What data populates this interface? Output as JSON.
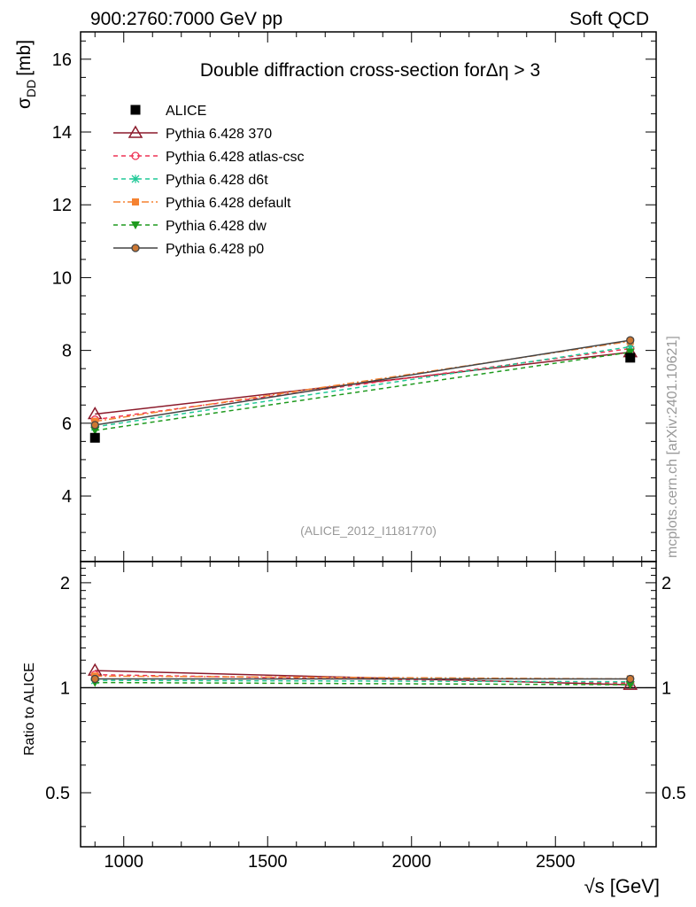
{
  "header": {
    "left": "900:2760:7000 GeV pp",
    "right": "Soft QCD"
  },
  "watermark": "mcplots.cern.ch [arXiv:2401.10621]",
  "chart_data": {
    "type": "line",
    "title": "Double diffraction cross-section forΔη > 3",
    "analysis_id": "(ALICE_2012_I1181770)",
    "xlabel": "√s [GeV]",
    "ylabel": "σ_DD [mb]",
    "ylabel_main": "σ",
    "ylabel_sub": "DD",
    "ylabel_unit": "[mb]",
    "ratio_ylabel": "Ratio to ALICE",
    "xlim": [
      850,
      2850
    ],
    "ylim": [
      2.2,
      16.75
    ],
    "ratio_ylim": [
      0.35,
      2.3
    ],
    "x_ticks": [
      1000,
      1500,
      2000,
      2500
    ],
    "x_tick_labels": [
      "1000",
      "1500",
      "2000",
      "2500"
    ],
    "y_ticks": [
      4,
      6,
      8,
      10,
      12,
      14,
      16
    ],
    "y_tick_labels": [
      "4",
      "6",
      "8",
      "10",
      "12",
      "14",
      "16"
    ],
    "ratio_ticks": [
      0.5,
      1,
      2
    ],
    "ratio_tick_labels": [
      "0.5",
      "1",
      "2"
    ],
    "x": [
      900,
      2760
    ],
    "data": {
      "name": "ALICE",
      "values": [
        5.6,
        7.8
      ]
    },
    "series": [
      {
        "name": "Pythia 6.428 370",
        "color": "#8b1a2b",
        "dash": "solid",
        "marker": "triangle-open",
        "values": [
          6.25,
          7.95
        ],
        "ratio": [
          1.12,
          1.02
        ]
      },
      {
        "name": "Pythia 6.428 atlas-csc",
        "color": "#ee3355",
        "dash": "dashed",
        "marker": "circle-open",
        "values": [
          6.1,
          8.05
        ],
        "ratio": [
          1.09,
          1.03
        ]
      },
      {
        "name": "Pythia 6.428 d6t",
        "color": "#20c997",
        "dash": "dashed",
        "marker": "star",
        "values": [
          5.9,
          8.1
        ],
        "ratio": [
          1.05,
          1.04
        ]
      },
      {
        "name": "Pythia 6.428 default",
        "color": "#f58231",
        "dash": "dashdot",
        "marker": "square",
        "values": [
          6.05,
          8.25
        ],
        "ratio": [
          1.08,
          1.06
        ]
      },
      {
        "name": "Pythia 6.428 dw",
        "color": "#1e9a1e",
        "dash": "dashed",
        "marker": "triangle-down",
        "values": [
          5.8,
          7.95
        ],
        "ratio": [
          1.035,
          1.02
        ]
      },
      {
        "name": "Pythia 6.428 p0",
        "color": "#444444",
        "dash": "solid",
        "marker": "circle-gray",
        "values": [
          5.95,
          8.28
        ],
        "ratio": [
          1.06,
          1.06
        ]
      }
    ]
  }
}
